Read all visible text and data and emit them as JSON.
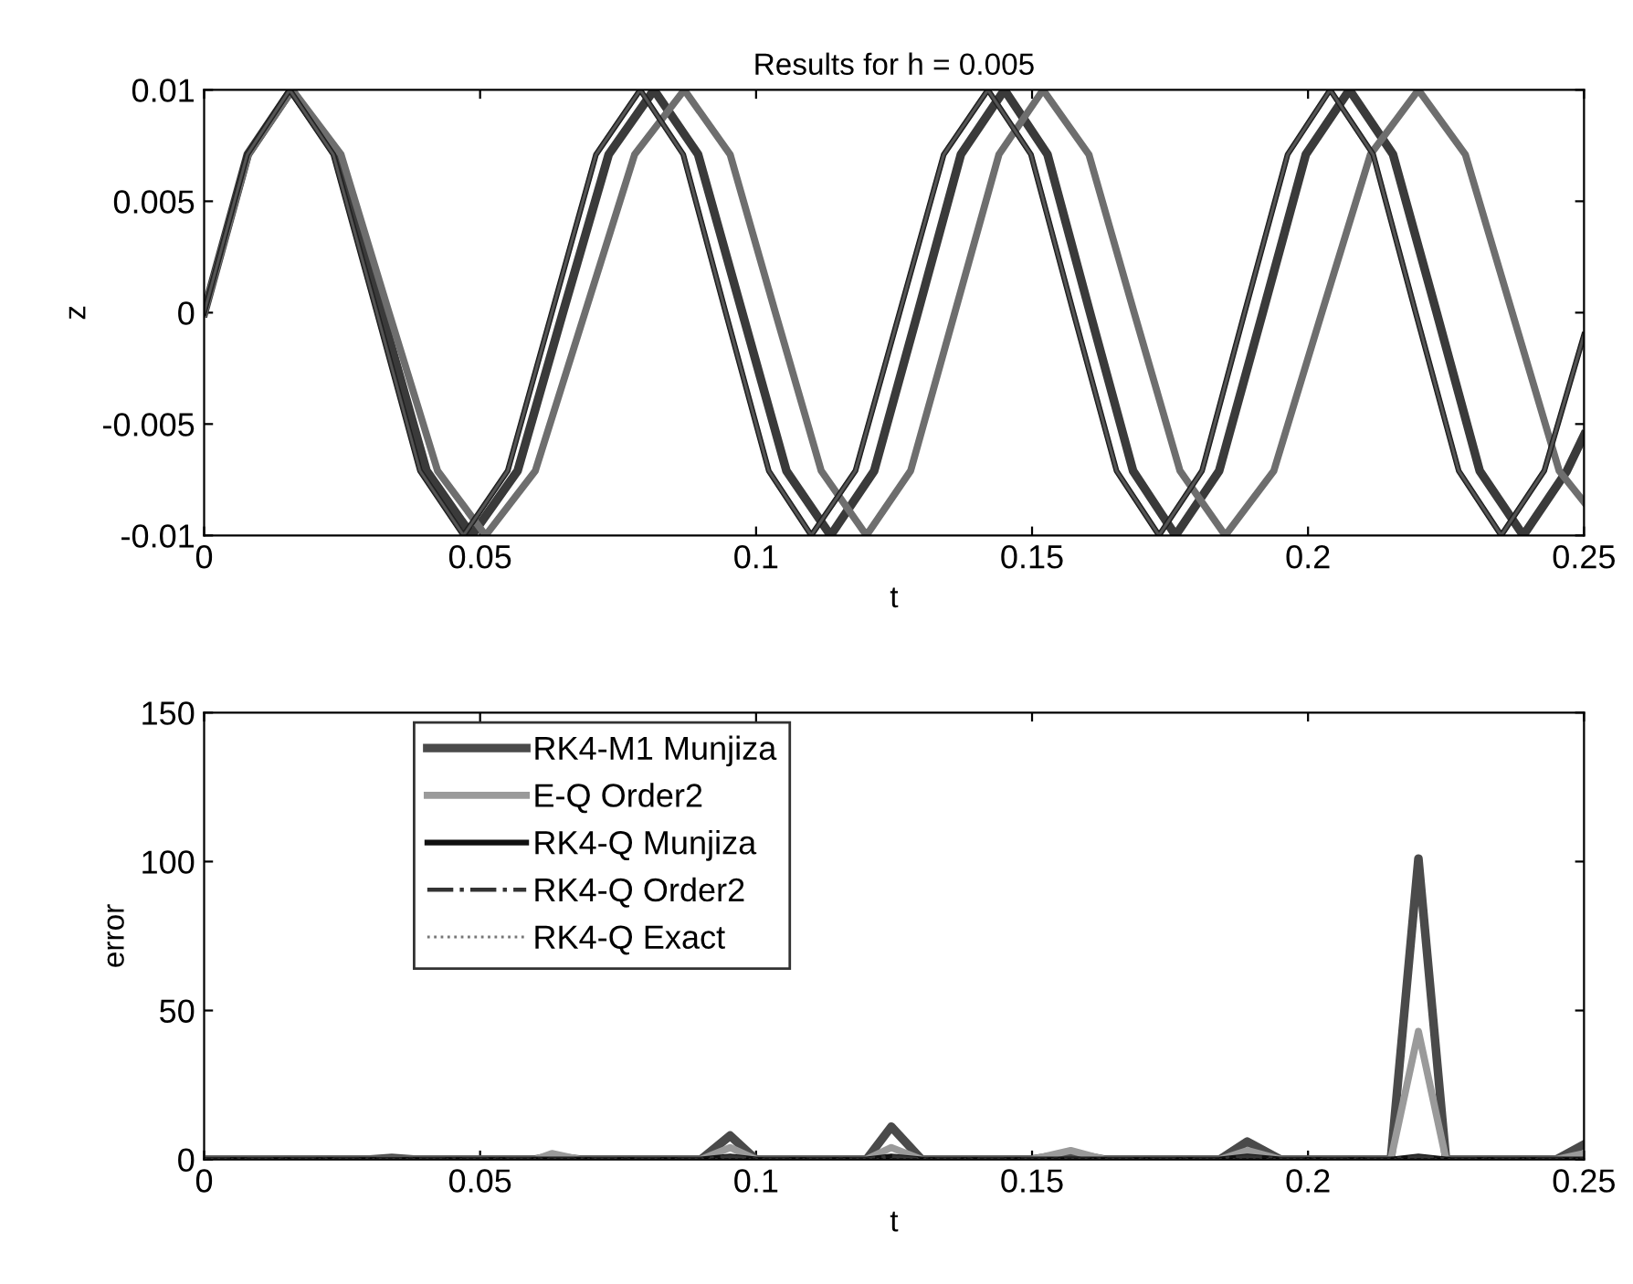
{
  "chart_data": [
    {
      "type": "line",
      "title": "Results for h = 0.005",
      "xlabel": "t",
      "ylabel": "z",
      "xlim": [
        0,
        0.25
      ],
      "xticks": [
        0,
        0.05,
        0.1,
        0.15,
        0.2,
        0.25
      ],
      "ylim": [
        -0.01,
        0.01
      ],
      "yticks": [
        -0.01,
        -0.005,
        0,
        0.005,
        0.01
      ],
      "grid": false,
      "legend": false,
      "series": [
        {
          "color": "#3a3a3a",
          "line_style": "solid",
          "x": [
            0,
            0.0079,
            0.0158,
            0.024,
            0.0322,
            0.0403,
            0.0485,
            0.0568,
            0.065,
            0.0733,
            0.0815,
            0.0895,
            0.0975,
            0.1055,
            0.1135,
            0.1214,
            0.1293,
            0.1371,
            0.145,
            0.1528,
            0.1605,
            0.1683,
            0.176,
            0.1839,
            0.1918,
            0.1996,
            0.2075,
            0.2154,
            0.2233,
            0.2311,
            0.239,
            0.2469,
            0.25
          ],
          "values": [
            0,
            0.0071,
            0.01,
            0.0071,
            0,
            -0.0071,
            -0.01,
            -0.0071,
            0,
            0.0071,
            0.01,
            0.0071,
            0,
            -0.0071,
            -0.01,
            -0.0071,
            0,
            0.0071,
            0.01,
            0.0071,
            0,
            -0.0071,
            -0.01,
            -0.0071,
            0,
            0.0071,
            0.01,
            0.0071,
            0,
            -0.0071,
            -0.01,
            -0.0071,
            -0.0055
          ]
        },
        {
          "color": "#6e6e6e",
          "line_style": "solid",
          "x": [
            0,
            0.008,
            0.016,
            0.0248,
            0.0335,
            0.0423,
            0.051,
            0.06,
            0.069,
            0.078,
            0.087,
            0.0953,
            0.1035,
            0.1118,
            0.12,
            0.128,
            0.136,
            0.144,
            0.152,
            0.1603,
            0.1685,
            0.1768,
            0.185,
            0.1938,
            0.2025,
            0.2113,
            0.22,
            0.2285,
            0.237,
            0.2455,
            0.25
          ],
          "values": [
            0,
            0.0071,
            0.01,
            0.0071,
            0,
            -0.0071,
            -0.01,
            -0.0071,
            0,
            0.0071,
            0.01,
            0.0071,
            0,
            -0.0071,
            -0.01,
            -0.0071,
            0,
            0.0071,
            0.01,
            0.0071,
            0,
            -0.0071,
            -0.01,
            -0.0071,
            0,
            0.0071,
            0.01,
            0.0071,
            0,
            -0.0071,
            -0.0085
          ]
        },
        {
          "color": "#1a1a1a",
          "line_style": "solid",
          "x": [
            0,
            0.0078,
            0.0155,
            0.0234,
            0.0313,
            0.0391,
            0.047,
            0.055,
            0.063,
            0.071,
            0.079,
            0.0868,
            0.0945,
            0.1023,
            0.11,
            0.118,
            0.126,
            0.134,
            0.142,
            0.1498,
            0.1575,
            0.1653,
            0.173,
            0.1808,
            0.1885,
            0.1963,
            0.204,
            0.2118,
            0.2195,
            0.2273,
            0.235,
            0.2428,
            0.25
          ],
          "values": [
            0,
            0.0071,
            0.01,
            0.0071,
            0,
            -0.0071,
            -0.01,
            -0.0071,
            0,
            0.0071,
            0.01,
            0.0071,
            0,
            -0.0071,
            -0.01,
            -0.0071,
            0,
            0.0071,
            0.01,
            0.0071,
            0,
            -0.0071,
            -0.01,
            -0.0071,
            0,
            0.0071,
            0.01,
            0.0071,
            0,
            -0.0071,
            -0.01,
            -0.0071,
            -0.001
          ]
        },
        {
          "color": "#2e2e2e",
          "line_style": "solid",
          "x": [
            0,
            0.0078,
            0.0155,
            0.0234,
            0.0313,
            0.0391,
            0.047,
            0.055,
            0.063,
            0.071,
            0.079,
            0.0868,
            0.0945,
            0.1023,
            0.11,
            0.118,
            0.126,
            0.134,
            0.142,
            0.1498,
            0.1575,
            0.1653,
            0.173,
            0.1808,
            0.1885,
            0.1963,
            0.204,
            0.2118,
            0.2195,
            0.2273,
            0.235,
            0.2428,
            0.25
          ],
          "values": [
            0,
            0.0071,
            0.01,
            0.0071,
            0,
            -0.0071,
            -0.01,
            -0.0071,
            0,
            0.0071,
            0.01,
            0.0071,
            0,
            -0.0071,
            -0.01,
            -0.0071,
            0,
            0.0071,
            0.01,
            0.0071,
            0,
            -0.0071,
            -0.01,
            -0.0071,
            0,
            0.0071,
            0.01,
            0.0071,
            0,
            -0.0071,
            -0.01,
            -0.0071,
            -0.001
          ]
        },
        {
          "color": "#555555",
          "line_style": "solid",
          "x": [
            0,
            0.0078,
            0.0155,
            0.0234,
            0.0313,
            0.0391,
            0.047,
            0.055,
            0.063,
            0.071,
            0.079,
            0.0868,
            0.0945,
            0.1023,
            0.11,
            0.118,
            0.126,
            0.134,
            0.142,
            0.1498,
            0.1575,
            0.1653,
            0.173,
            0.1808,
            0.1885,
            0.1963,
            0.204,
            0.2118,
            0.2195,
            0.2273,
            0.235,
            0.2428,
            0.25
          ],
          "values": [
            0,
            0.0071,
            0.01,
            0.0071,
            0,
            -0.0071,
            -0.01,
            -0.0071,
            0,
            0.0071,
            0.01,
            0.0071,
            0,
            -0.0071,
            -0.01,
            -0.0071,
            0,
            0.0071,
            0.01,
            0.0071,
            0,
            -0.0071,
            -0.01,
            -0.0071,
            0,
            0.0071,
            0.01,
            0.0071,
            0,
            -0.0071,
            -0.01,
            -0.0071,
            -0.001
          ]
        }
      ]
    },
    {
      "type": "line",
      "xlabel": "t",
      "ylabel": "error",
      "xlim": [
        0,
        0.25
      ],
      "xticks": [
        0,
        0.05,
        0.1,
        0.15,
        0.2,
        0.25
      ],
      "ylim": [
        0,
        150
      ],
      "yticks": [
        0,
        50,
        100,
        150
      ],
      "grid": false,
      "legend": "top left",
      "x": [
        0,
        0.03,
        0.034,
        0.038,
        0.06,
        0.063,
        0.068,
        0.09,
        0.0953,
        0.1,
        0.12,
        0.1245,
        0.13,
        0.15,
        0.157,
        0.163,
        0.184,
        0.189,
        0.195,
        0.215,
        0.22,
        0.225,
        0.245,
        0.25
      ],
      "series": [
        {
          "name": "RK4-M1 Munjiza",
          "color": "#4a4a4a",
          "line_style": "solid",
          "values": [
            0,
            0,
            0.5,
            0,
            0,
            1,
            0,
            0,
            8,
            0,
            0,
            11,
            0,
            0,
            2,
            0,
            0,
            6,
            0,
            0,
            101,
            0,
            0,
            5
          ]
        },
        {
          "name": "E-Q Order2",
          "color": "#9a9a9a",
          "line_style": "solid",
          "values": [
            0,
            0,
            0,
            0,
            0,
            2,
            0,
            0,
            4,
            0,
            0,
            4,
            0,
            0,
            3,
            0,
            0,
            3,
            0,
            0,
            43,
            0,
            0,
            2
          ]
        },
        {
          "name": "RK4-Q Munjiza",
          "color": "#111111",
          "line_style": "solid",
          "values": [
            0,
            0,
            0,
            0,
            0,
            0,
            0,
            0,
            1,
            0,
            0,
            1,
            0,
            0,
            0,
            0,
            0,
            1,
            0,
            0,
            1,
            0,
            0,
            0
          ]
        },
        {
          "name": "RK4-Q Order2",
          "color": "#333333",
          "line_style": "dashdot",
          "values": [
            0,
            0,
            0,
            0,
            0,
            0,
            0,
            0,
            1,
            0,
            0,
            1,
            0,
            0,
            0,
            0,
            0,
            1,
            0,
            0,
            1,
            0,
            0,
            0
          ]
        },
        {
          "name": "RK4-Q Exact",
          "color": "#777777",
          "line_style": "dotted",
          "values": [
            0,
            0,
            0,
            0,
            0,
            0,
            0,
            0,
            0,
            0,
            0,
            0,
            0,
            0,
            0,
            0,
            0,
            0,
            0,
            0,
            0,
            0,
            0,
            0
          ]
        }
      ]
    }
  ]
}
